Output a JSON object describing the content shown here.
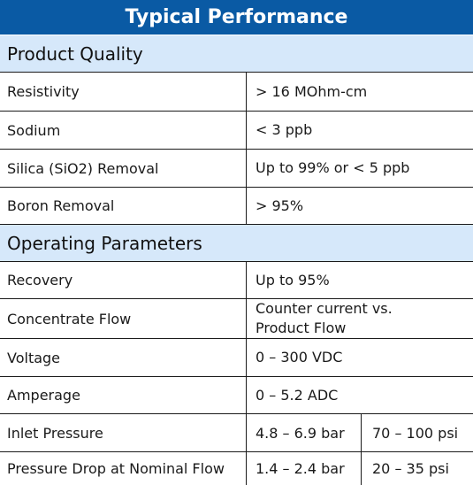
{
  "title": "Typical Performance",
  "sections": {
    "product_quality": {
      "heading": "Product Quality",
      "rows": [
        {
          "label": "Resistivity",
          "value": "> 16 MOhm-cm"
        },
        {
          "label": "Sodium",
          "value": "< 3 ppb"
        },
        {
          "label": "Silica (SiO2) Removal",
          "value": "Up to 99% or < 5 ppb"
        },
        {
          "label": "Boron Removal",
          "value": "> 95%"
        }
      ]
    },
    "operating_parameters": {
      "heading": "Operating Parameters",
      "rows": [
        {
          "label": "Recovery",
          "value": "Up to 95%"
        },
        {
          "label": "Concentrate Flow",
          "value": "Counter current vs.\nProduct Flow"
        },
        {
          "label": "Voltage",
          "value": "0 – 300 VDC"
        },
        {
          "label": "Amperage",
          "value": "0 – 5.2 ADC"
        },
        {
          "label": "Inlet Pressure",
          "value_bar": "4.8 – 6.9 bar",
          "value_psi": "70 – 100 psi"
        },
        {
          "label": "Pressure Drop at Nominal Flow",
          "value_bar": "1.4 – 2.4 bar",
          "value_psi": "20 – 35 psi"
        }
      ]
    }
  }
}
